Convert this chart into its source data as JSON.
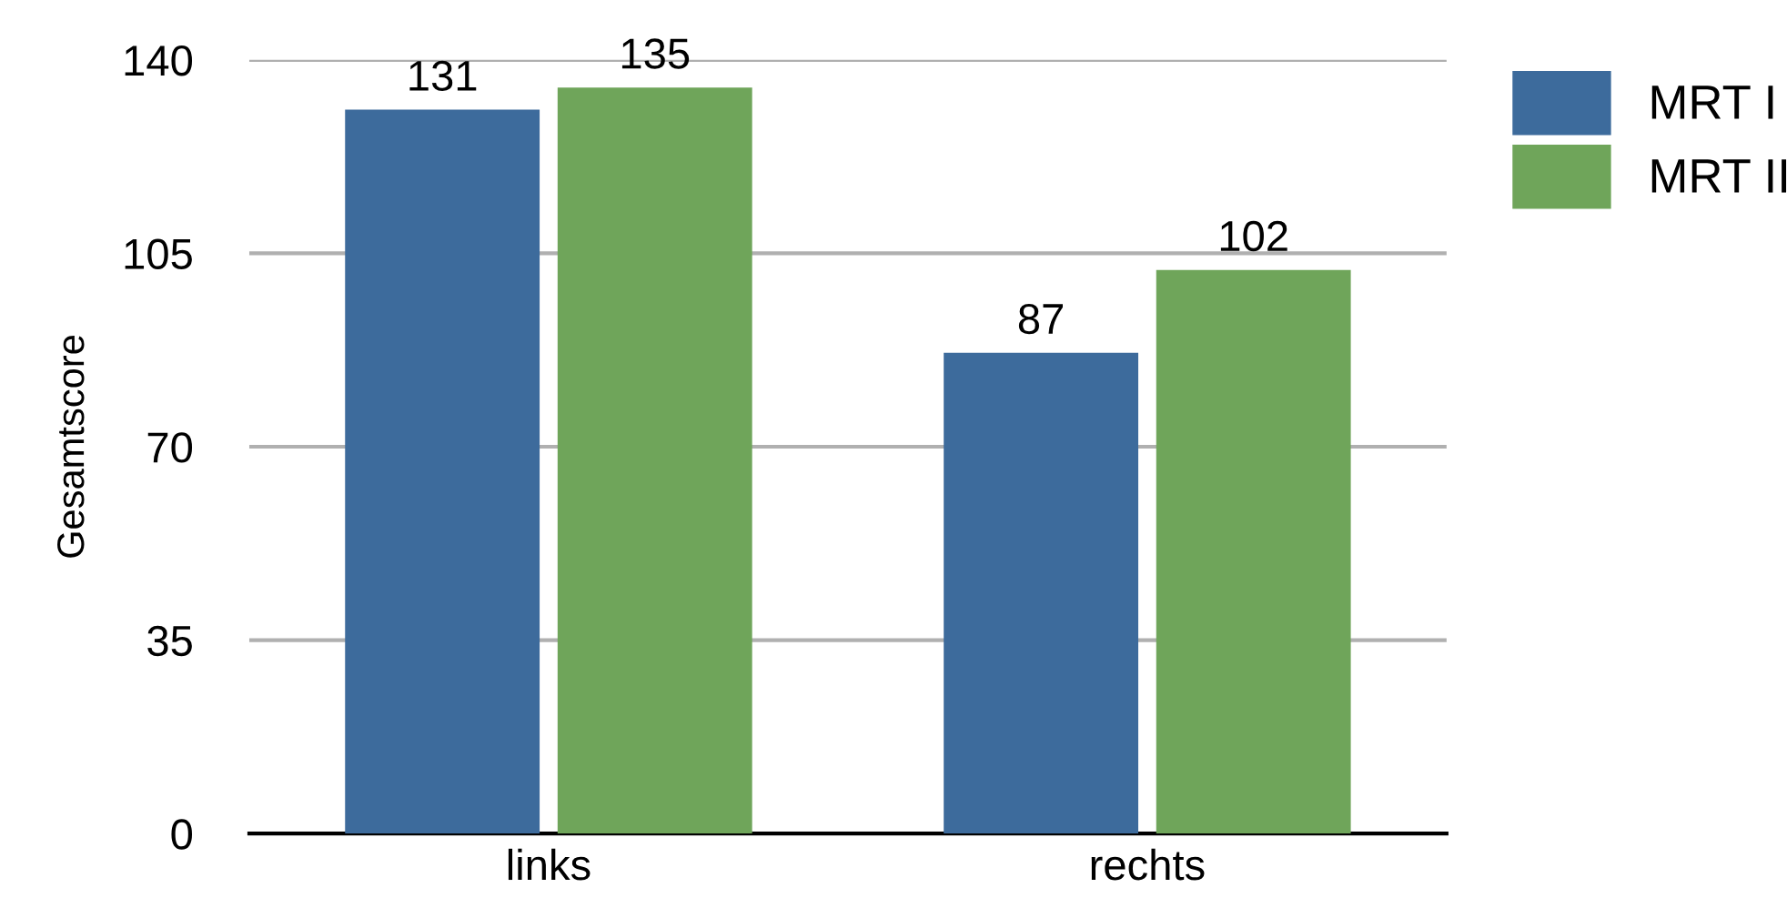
{
  "chart_data": {
    "type": "bar",
    "ylabel": "Gesamtscore",
    "categories": [
      "links",
      "rechts"
    ],
    "series": [
      {
        "name": "MRT I",
        "color": "#3d6b9c",
        "values": [
          131,
          87
        ]
      },
      {
        "name": "MRT II",
        "color": "#6fa55a",
        "values": [
          135,
          102
        ]
      }
    ],
    "ylim": [
      0,
      140
    ],
    "yticks": [
      0,
      35,
      70,
      105,
      140
    ],
    "grid": "y",
    "legend": "top right",
    "data_labels": true
  }
}
